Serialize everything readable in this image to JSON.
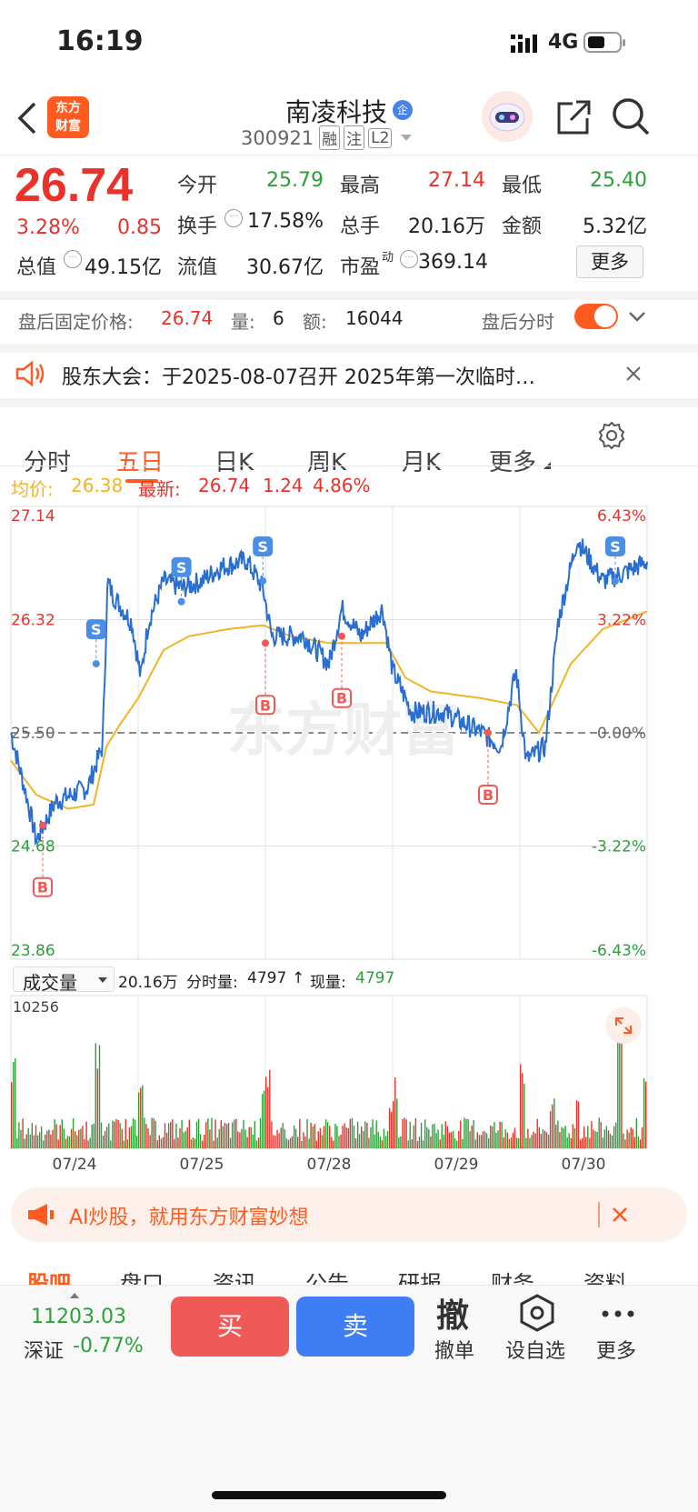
{
  "status_bar": {
    "time": "16:19",
    "network": "4G"
  },
  "header": {
    "stock_name": "南凌科技",
    "badge": "企",
    "code": "300921",
    "tags": [
      "融",
      "注",
      "L2"
    ]
  },
  "quote": {
    "price": "26.74",
    "change_pct": "3.28%",
    "change": "0.85",
    "fields": [
      {
        "label": "今开",
        "value": "25.79",
        "color": "green"
      },
      {
        "label": "最高",
        "value": "27.14",
        "color": "red"
      },
      {
        "label": "最低",
        "value": "25.40",
        "color": "green"
      },
      {
        "label": "换手",
        "value": "17.58%",
        "color": "dark"
      },
      {
        "label": "总手",
        "value": "20.16万",
        "color": "dark"
      },
      {
        "label": "金额",
        "value": "5.32亿",
        "color": "dark"
      },
      {
        "label": "总值",
        "value": "49.15亿",
        "color": "dark"
      },
      {
        "label": "流值",
        "value": "30.67亿",
        "color": "dark"
      },
      {
        "label": "市盈",
        "sup": "动",
        "value": "369.14",
        "color": "dark"
      }
    ],
    "more_button": "更多"
  },
  "after_hours": {
    "label": "盘后固定价格:",
    "price": "26.74",
    "volume_label": "量:",
    "volume": "6",
    "amount_label": "额:",
    "amount": "16044",
    "toggle_label": "盘后分时",
    "toggle_on": true
  },
  "notice": {
    "text": "股东大会：于2025-08-07召开 2025年第一次临时…"
  },
  "tabs": [
    "分时",
    "五日",
    "日K",
    "周K",
    "月K",
    "更多"
  ],
  "active_tab": "五日",
  "chart_header": {
    "avg_label": "均价:",
    "avg_value": "26.38",
    "latest_label": "最新:",
    "latest_value": "26.74",
    "latest_change": "1.24",
    "latest_pct": "4.86%"
  },
  "chart_data": {
    "type": "line",
    "y_ticks_left": [
      "27.14",
      "26.32",
      "25.50",
      "24.68",
      "23.86"
    ],
    "y_ticks_right": [
      "6.43%",
      "3.22%",
      "0.00%",
      "-3.22%",
      "-6.43%"
    ],
    "ylim": [
      23.86,
      27.14
    ],
    "baseline": 25.5,
    "x_labels": [
      "07/24",
      "07/25",
      "07/28",
      "07/29",
      "07/30"
    ],
    "series": [
      {
        "name": "价格",
        "color": "#2a6fd0"
      },
      {
        "name": "均价",
        "color": "#f3b326"
      }
    ],
    "price_waypoints": [
      [
        0,
        25.5
      ],
      [
        0.12,
        25.05
      ],
      [
        0.2,
        24.72
      ],
      [
        0.35,
        25.0
      ],
      [
        0.6,
        25.1
      ],
      [
        0.72,
        25.4
      ],
      [
        0.76,
        26.6
      ],
      [
        0.8,
        26.5
      ],
      [
        0.95,
        26.3
      ],
      [
        1.02,
        25.9
      ],
      [
        1.08,
        26.3
      ],
      [
        1.2,
        26.6
      ],
      [
        1.35,
        26.55
      ],
      [
        1.5,
        26.6
      ],
      [
        1.65,
        26.7
      ],
      [
        1.85,
        26.75
      ],
      [
        1.98,
        26.55
      ],
      [
        2.05,
        26.2
      ],
      [
        2.3,
        26.2
      ],
      [
        2.5,
        26.0
      ],
      [
        2.6,
        26.4
      ],
      [
        2.75,
        26.2
      ],
      [
        2.92,
        26.4
      ],
      [
        3.0,
        25.95
      ],
      [
        3.15,
        25.65
      ],
      [
        3.4,
        25.65
      ],
      [
        3.7,
        25.5
      ],
      [
        3.85,
        25.4
      ],
      [
        3.97,
        25.95
      ],
      [
        4.05,
        25.3
      ],
      [
        4.2,
        25.4
      ],
      [
        4.3,
        26.3
      ],
      [
        4.45,
        26.9
      ],
      [
        4.65,
        26.6
      ],
      [
        4.8,
        26.65
      ],
      [
        5.0,
        26.74
      ]
    ],
    "avg_waypoints": [
      [
        0,
        25.3
      ],
      [
        0.2,
        25.05
      ],
      [
        0.45,
        24.95
      ],
      [
        0.65,
        24.98
      ],
      [
        0.75,
        25.4
      ],
      [
        0.85,
        25.55
      ],
      [
        1.0,
        25.75
      ],
      [
        1.2,
        26.1
      ],
      [
        1.4,
        26.2
      ],
      [
        1.7,
        26.25
      ],
      [
        1.98,
        26.28
      ],
      [
        2.2,
        26.2
      ],
      [
        2.5,
        26.15
      ],
      [
        2.95,
        26.15
      ],
      [
        3.1,
        25.9
      ],
      [
        3.3,
        25.8
      ],
      [
        3.7,
        25.75
      ],
      [
        3.98,
        25.7
      ],
      [
        4.15,
        25.5
      ],
      [
        4.4,
        26.0
      ],
      [
        4.65,
        26.25
      ],
      [
        5.0,
        26.38
      ]
    ],
    "markers": [
      {
        "type": "B",
        "x": 0.25,
        "price": 24.83
      },
      {
        "type": "S",
        "x": 0.67,
        "price": 26.0
      },
      {
        "type": "S",
        "x": 1.34,
        "price": 26.45
      },
      {
        "type": "B",
        "x": 2.0,
        "price": 26.15
      },
      {
        "type": "S",
        "x": 1.98,
        "price": 26.6
      },
      {
        "type": "B",
        "x": 2.6,
        "price": 26.2
      },
      {
        "type": "B",
        "x": 3.75,
        "price": 25.5
      },
      {
        "type": "S",
        "x": 4.75,
        "price": 26.6
      }
    ]
  },
  "volume": {
    "selector": "成交量",
    "total": "20.16万",
    "period_label": "分时量:",
    "period_value": "4797",
    "arrow": "↑",
    "current_label": "现量:",
    "current_value": "4797",
    "max_tick": "10256"
  },
  "ad_banner": {
    "text": "AI炒股，就用东方财富妙想"
  },
  "bottom_tabs": [
    "股吧",
    "盘口",
    "资讯",
    "公告",
    "研报",
    "财务",
    "资料"
  ],
  "footer": {
    "index_value": "11203.03",
    "index_name": "深证",
    "index_change": "-0.77%",
    "buy_label": "买",
    "sell_label": "卖",
    "cancel_glyph": "撤",
    "cancel_label": "撤单",
    "watch_label": "设自选",
    "more_label": "更多"
  },
  "colors": {
    "up": "#e8322a",
    "down": "#2ba13a",
    "accent": "#ff5a1f",
    "buy": "#ef5a57",
    "sell": "#3f7df5"
  }
}
